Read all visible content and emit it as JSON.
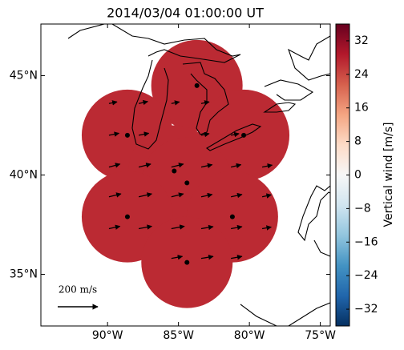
{
  "chart_data": {
    "type": "map",
    "title": "2014/03/04 01:00:00 UT",
    "xlim": [
      -94.7,
      -74.3
    ],
    "ylim": [
      32.4,
      47.6
    ],
    "xticks": [
      {
        "value": -90,
        "label": "90°W"
      },
      {
        "value": -85,
        "label": "85°W"
      },
      {
        "value": -80,
        "label": "80°W"
      },
      {
        "value": -75,
        "label": "75°W"
      }
    ],
    "yticks": [
      {
        "value": 35,
        "label": "35°N"
      },
      {
        "value": 40,
        "label": "40°N"
      },
      {
        "value": 45,
        "label": "45°N"
      }
    ],
    "field": {
      "value": 28,
      "color": "#bb2a33"
    },
    "sites": {
      "lon": [
        -83.7,
        -88.6,
        -80.4,
        -85.3,
        -84.4,
        -88.6,
        -81.2,
        -84.4
      ],
      "lat": [
        44.5,
        42.0,
        42.0,
        40.2,
        39.6,
        37.9,
        37.9,
        35.6
      ]
    },
    "vectors": {
      "lon": [
        -89.9,
        -87.8,
        -85.5,
        -83.4,
        -89.9,
        -87.8,
        -83.4,
        -81.3,
        -89.9,
        -87.8,
        -85.5,
        -83.4,
        -81.3,
        -79.1,
        -89.9,
        -87.8,
        -85.5,
        -83.4,
        -81.3,
        -79.1,
        -89.9,
        -87.8,
        -85.5,
        -83.4,
        -81.3,
        -79.1,
        -85.5,
        -83.4,
        -81.3
      ],
      "lat": [
        43.6,
        43.6,
        43.6,
        43.6,
        42.0,
        42.0,
        42.0,
        42.0,
        40.4,
        40.4,
        40.4,
        40.4,
        40.4,
        40.4,
        38.9,
        38.9,
        38.9,
        38.9,
        38.9,
        38.9,
        37.3,
        37.3,
        37.3,
        37.3,
        37.3,
        37.3,
        35.8,
        35.8,
        35.8
      ],
      "u": [
        40,
        45,
        40,
        40,
        50,
        50,
        40,
        40,
        55,
        60,
        60,
        55,
        50,
        50,
        60,
        65,
        60,
        55,
        55,
        45,
        55,
        65,
        65,
        60,
        55,
        45,
        55,
        60,
        55
      ],
      "v": [
        8,
        10,
        8,
        8,
        10,
        10,
        8,
        8,
        15,
        15,
        15,
        12,
        12,
        10,
        15,
        15,
        15,
        12,
        12,
        10,
        12,
        12,
        12,
        10,
        10,
        8,
        10,
        10,
        10
      ]
    },
    "reference_vector": {
      "value": 200,
      "label": "200 m/s"
    },
    "colorbar": {
      "label": "Vertical wind [m/s]",
      "clim": [
        -36,
        36
      ],
      "ticks": [
        {
          "value": -32,
          "label": "−32"
        },
        {
          "value": -24,
          "label": "−24"
        },
        {
          "value": -16,
          "label": "−16"
        },
        {
          "value": -8,
          "label": "−8"
        },
        0,
        8,
        16,
        24,
        32
      ]
    }
  }
}
